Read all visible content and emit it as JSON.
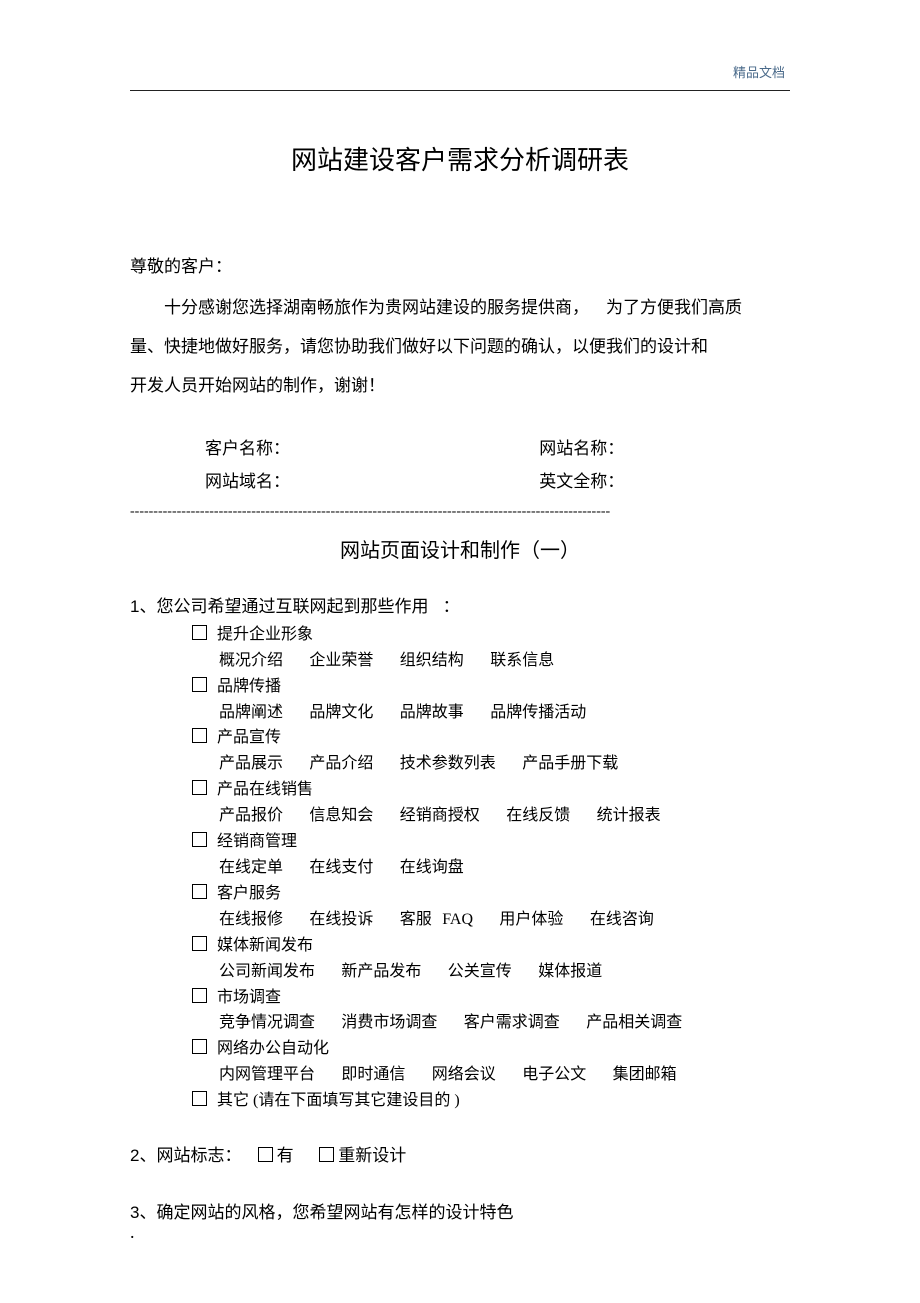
{
  "header_tag": "精品文档",
  "title": "网站建设客户需求分析调研表",
  "salutation": "尊敬的客户：",
  "intro_line1_a": "十分感谢您选择湖南畅旅作为贵网站建设的服务提供商，",
  "intro_line1_b": "为了方便我们高质",
  "intro_line2": "量、快捷地做好服务，请您协助我们做好以下问题的确认，以便我们的设计和",
  "intro_line3": "开发人员开始网站的制作，谢谢！",
  "info": {
    "customer_name_label": "客户名称：",
    "site_name_label": "网站名称：",
    "domain_label": "网站域名：",
    "english_label": "英文全称："
  },
  "dashed": "-------------------------------------------------------------------------------------------------------",
  "subtitle": "网站页面设计和制作（一）",
  "q1": {
    "text_a": "1",
    "text_b": "、您公司希望通过互联网起到那些作用",
    "text_c": "：",
    "options": [
      {
        "label": "提升企业形象",
        "sub": "概况介绍　 企业荣誉　 组织结构　 联系信息"
      },
      {
        "label": "品牌传播",
        "sub": "品牌阐述　 品牌文化　 品牌故事　 品牌传播活动"
      },
      {
        "label": "产品宣传",
        "sub": "产品展示　  产品介绍　 技术参数列表　  产品手册下载"
      },
      {
        "label": "产品在线销售",
        "sub": "产品报价　 信息知会　 经销商授权　 在线反馈　 统计报表"
      },
      {
        "label": "经销商管理",
        "sub": "在线定单　 在线支付　 在线询盘"
      },
      {
        "label": "客户服务",
        "sub": "在线报修　 在线投诉　 客服 FAQ　 用户体验　 在线咨询"
      },
      {
        "label": "媒体新闻发布",
        "sub": "公司新闻发布　  新产品发布　  公关宣传　  媒体报道"
      },
      {
        "label": "市场调查",
        "sub": "竞争情况调查　 消费市场调查　 客户需求调查　 产品相关调查"
      },
      {
        "label": "网络办公自动化",
        "sub": "内网管理平台　  即时通信　 网络会议　 电子公文　 集团邮箱"
      },
      {
        "label": "其它  (请在下面填写其它建设目的   )",
        "sub": null
      }
    ]
  },
  "q2": {
    "text_a": "2",
    "text_b": "、网站标志：",
    "opt1": "有",
    "opt2": "重新设计"
  },
  "q3": {
    "text_a": "3",
    "text_b": "、确定网站的风格，您希望网站有怎样的设计特色"
  },
  "footer_dot": "."
}
